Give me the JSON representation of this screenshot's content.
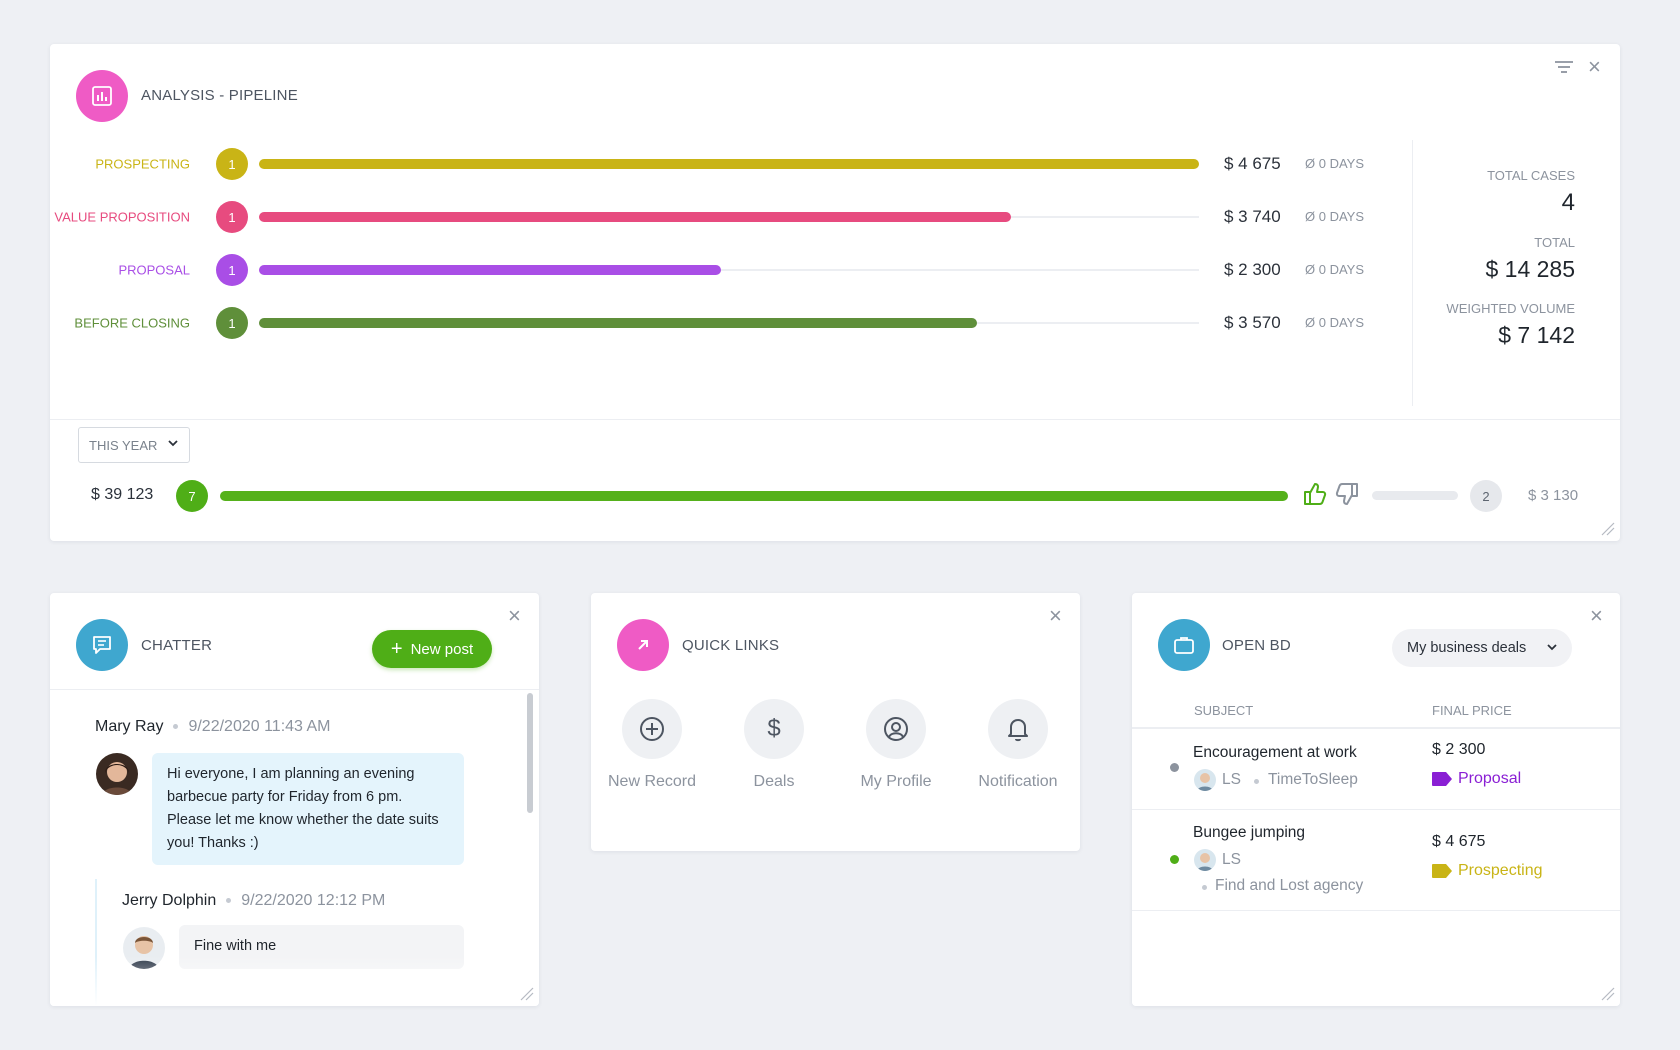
{
  "analysis": {
    "title": "ANALYSIS - PIPELINE",
    "stages": [
      {
        "label": "PROSPECTING",
        "count": "1",
        "amount": "$ 4 675",
        "days": "Ø 0 DAYS",
        "color": "#c9b416",
        "fill": 1.0
      },
      {
        "label": "VALUE PROPOSITION",
        "count": "1",
        "amount": "$ 3 740",
        "days": "Ø 0 DAYS",
        "color": "#e74b7f",
        "fill": 0.8
      },
      {
        "label": "PROPOSAL",
        "count": "1",
        "amount": "$ 2 300",
        "days": "Ø 0 DAYS",
        "color": "#a94ee6",
        "fill": 0.492
      },
      {
        "label": "BEFORE CLOSING",
        "count": "1",
        "amount": "$ 3 570",
        "days": "Ø 0 DAYS",
        "color": "#5f8f3a",
        "fill": 0.764
      }
    ],
    "summary": {
      "total_cases_label": "TOTAL CASES",
      "total_cases": "4",
      "total_label": "TOTAL",
      "total": "$ 14 285",
      "weighted_label": "WEIGHTED VOLUME",
      "weighted": "$ 7 142"
    },
    "period": "THIS YEAR",
    "won_amount": "$ 39 123",
    "won_count": "7",
    "won_fill": 1.0,
    "lost_count": "2",
    "lost_amount": "$ 3 130",
    "lost_fill": 0.0
  },
  "chatter": {
    "title": "CHATTER",
    "new_post": "New post",
    "messages": [
      {
        "author": "Mary Ray",
        "time": "9/22/2020 11:43 AM",
        "text": "Hi everyone, I am planning an evening barbecue party for Friday from 6 pm. Please let me know whether the date suits you! Thanks :)"
      },
      {
        "author": "Jerry Dolphin",
        "time": "9/22/2020 12:12 PM",
        "text": "Fine with me"
      }
    ]
  },
  "quick_links": {
    "title": "QUICK LINKS",
    "items": [
      {
        "label": "New Record",
        "icon": "plus-circle-icon"
      },
      {
        "label": "Deals",
        "icon": "dollar-icon"
      },
      {
        "label": "My Profile",
        "icon": "user-circle-icon"
      },
      {
        "label": "Notification",
        "icon": "bell-icon"
      }
    ]
  },
  "open_bd": {
    "title": "OPEN BD",
    "filter": "My business deals",
    "col_subject": "SUBJECT",
    "col_price": "FINAL PRICE",
    "rows": [
      {
        "subject": "Encouragement at work",
        "user": "LS",
        "company": "TimeToSleep",
        "price": "$ 2 300",
        "stage": "Proposal",
        "stage_color": "#8a1fd4",
        "dot_color": "#8c939e"
      },
      {
        "subject": "Bungee jumping",
        "user": "LS",
        "company": "Find and Lost agency",
        "price": "$ 4 675",
        "stage": "Prospecting",
        "stage_color": "#c9b416",
        "dot_color": "#4fae17"
      }
    ]
  },
  "colors": {
    "analysis_icon": "#ef5bc5",
    "chatter_icon": "#3fa7cf",
    "quicklinks_icon": "#ef5bc5",
    "openbd_icon": "#3fa7cf",
    "won": "#4fae17"
  }
}
